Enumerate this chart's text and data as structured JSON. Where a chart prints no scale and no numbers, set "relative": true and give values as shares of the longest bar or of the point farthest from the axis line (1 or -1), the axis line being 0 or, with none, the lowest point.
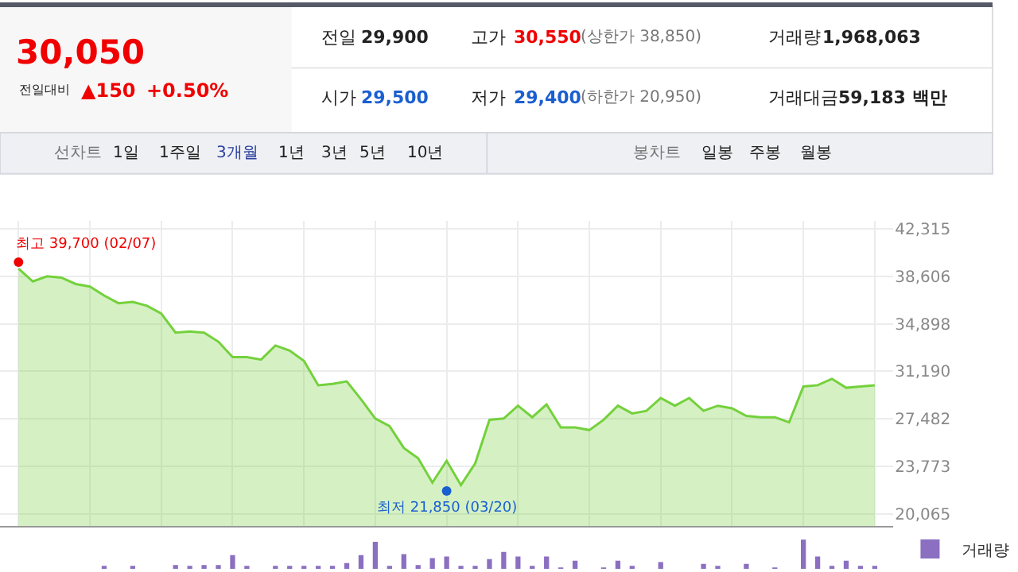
{
  "chart_data": [
    {
      "type": "area",
      "categories": [
        null,
        null,
        null,
        null,
        null,
        null,
        null,
        null,
        null,
        null,
        null,
        null,
        null,
        null,
        null,
        null,
        null,
        null,
        null,
        null,
        null,
        null,
        null,
        null,
        null,
        null,
        null,
        null,
        null,
        null,
        null,
        null,
        null,
        null,
        null,
        null,
        null,
        null,
        null,
        null,
        null,
        null,
        null,
        null,
        null,
        null,
        null,
        null,
        null,
        null,
        null,
        null,
        null,
        null,
        null,
        null,
        null,
        null,
        null,
        null,
        null
      ],
      "series": [
        {
          "color": "#74d13c",
          "values": [
            39200,
            38200,
            38600,
            38500,
            38000,
            37800,
            37100,
            36500,
            36600,
            36300,
            35700,
            34200,
            34300,
            34200,
            33500,
            32300,
            32300,
            32100,
            33200,
            32800,
            32000,
            30100,
            30200,
            30400,
            29000,
            27500,
            26900,
            25200,
            24400,
            22500,
            24200,
            22300,
            24000,
            27400,
            27500,
            28500,
            27600,
            28600,
            26800,
            26800,
            26600,
            27400,
            28500,
            27900,
            28100,
            29100,
            28500,
            29100,
            28100,
            28500,
            28300,
            27700,
            27600,
            27600,
            27200,
            30000,
            30100,
            30600,
            29900,
            30000,
            30100
          ]
        },
        {
          "type": "scatter",
          "colors": [
            "#f00000",
            null,
            null,
            null,
            null,
            null,
            null,
            null,
            null,
            null,
            null,
            null,
            null,
            null,
            null,
            null,
            null,
            null,
            null,
            null,
            null,
            null,
            null,
            null,
            null,
            null,
            null,
            null,
            null,
            null,
            "#1a5fd0",
            null,
            null,
            null,
            null,
            null,
            null,
            null,
            null,
            null,
            null,
            null,
            null,
            null,
            null,
            null,
            null,
            null,
            null,
            null,
            null,
            null,
            null,
            null,
            null,
            null,
            null,
            null,
            null,
            null,
            null
          ],
          "values": [
            39700,
            null,
            null,
            null,
            null,
            null,
            null,
            null,
            null,
            null,
            null,
            null,
            null,
            null,
            null,
            null,
            null,
            null,
            null,
            null,
            null,
            null,
            null,
            null,
            null,
            null,
            null,
            null,
            null,
            null,
            21850,
            null,
            null,
            null,
            null,
            null,
            null,
            null,
            null,
            null,
            null,
            null,
            null,
            null,
            null,
            null,
            null,
            null,
            null,
            null,
            null,
            null,
            null,
            null,
            null,
            null,
            null,
            null,
            null,
            null,
            null
          ]
        }
      ],
      "ylim": [
        19100,
        42900
      ],
      "yticks": [
        {
          "value": 20065,
          "label": "20,065"
        },
        {
          "value": 23773,
          "label": "23,773"
        },
        {
          "value": 27482,
          "label": "27,482"
        },
        {
          "value": 31190,
          "label": "31,190"
        },
        {
          "value": 34898,
          "label": "34,898"
        },
        {
          "value": 38606,
          "label": "38,606"
        },
        {
          "value": 42315,
          "label": "42,315"
        }
      ],
      "grid": true,
      "annotations": [
        "30,050",
        "전일대비",
        "▲150",
        "+0.50%",
        "전일",
        "29,900",
        "고가",
        "30,550",
        "(상한가 38,850)",
        "거래량",
        "1,968,063",
        "시가",
        "29,500",
        "저가",
        "29,400",
        "(하한가 20,950)",
        "거래대금",
        "59,183 백만",
        "선차트",
        "1일",
        "1주일",
        "3개월",
        "1년",
        "3년",
        "5년",
        "10년",
        "봉차트",
        "일봉",
        "주봉",
        "월봉",
        "최고 39,700 (02/07)",
        "최저 21,850 (03/20)"
      ]
    },
    {
      "type": "bar",
      "relative": true,
      "categories": [
        null,
        null,
        null,
        null,
        null,
        null,
        null,
        null,
        null,
        null,
        null,
        null,
        null,
        null,
        null,
        null,
        null,
        null,
        null,
        null,
        null,
        null,
        null,
        null,
        null,
        null,
        null,
        null,
        null,
        null,
        null,
        null,
        null,
        null,
        null,
        null,
        null,
        null,
        null,
        null,
        null,
        null,
        null,
        null,
        null,
        null,
        null,
        null,
        null,
        null,
        null,
        null,
        null,
        null,
        null,
        null,
        null,
        null,
        null,
        null,
        null
      ],
      "series": [
        {
          "name": "거래량",
          "color": "#8b6fc1",
          "values": [
            null,
            null,
            null,
            null,
            null,
            null,
            0.08,
            null,
            0.08,
            null,
            null,
            0.13,
            0.08,
            0.13,
            0.13,
            0.47,
            0.07,
            null,
            0.08,
            0.08,
            0.05,
            0.05,
            0.07,
            0.2,
            0.47,
            0.92,
            0.05,
            0.5,
            0.13,
            0.37,
            0.42,
            0.05,
            0.08,
            0.33,
            0.58,
            0.42,
            0.08,
            0.42,
            0.03,
            0.28,
            null,
            0.03,
            0.28,
            0.08,
            null,
            0.23,
            null,
            null,
            0.17,
            0.08,
            null,
            0.17,
            null,
            0.03,
            null,
            1,
            0.42,
            0.05,
            0.28,
            0.08,
            0.05
          ]
        }
      ],
      "legend": "right"
    }
  ]
}
